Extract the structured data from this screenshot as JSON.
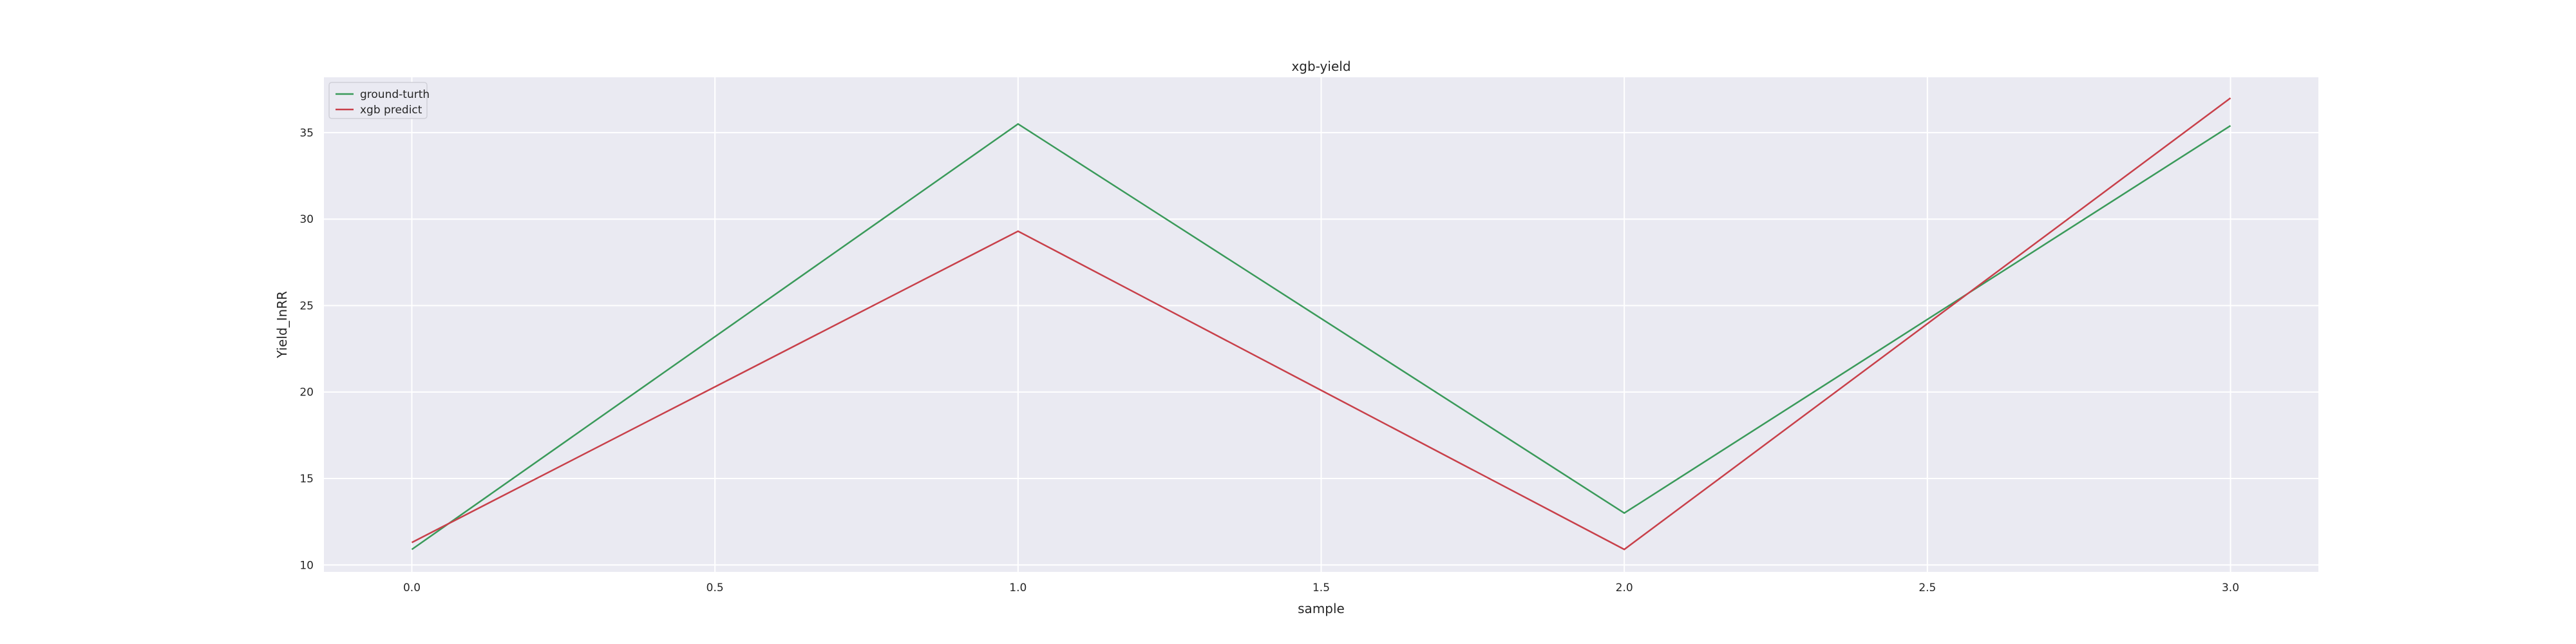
{
  "chart_data": {
    "type": "line",
    "title": "xgb-yield",
    "xlabel": "sample",
    "ylabel": "Yield_InRR",
    "x": [
      0,
      1,
      2,
      3
    ],
    "series": [
      {
        "name": "ground-turth",
        "color": "#3a9a5a",
        "values": [
          10.9,
          35.5,
          13.0,
          35.4
        ]
      },
      {
        "name": "xgb predict",
        "color": "#c8404a",
        "values": [
          11.3,
          29.3,
          10.9,
          37.0
        ]
      }
    ],
    "xlim": [
      -0.145,
      3.145
    ],
    "ylim": [
      9.6,
      38.2
    ],
    "xticks": [
      0.0,
      0.5,
      1.0,
      1.5,
      2.0,
      2.5,
      3.0
    ],
    "xtick_labels": [
      "0.0",
      "0.5",
      "1.0",
      "1.5",
      "2.0",
      "2.5",
      "3.0"
    ],
    "yticks": [
      10,
      15,
      20,
      25,
      30,
      35
    ],
    "ytick_labels": [
      "10",
      "15",
      "20",
      "25",
      "30",
      "35"
    ],
    "grid": true,
    "legend_position": "top-left",
    "colors": {
      "plot_background": "#eaeaf2",
      "grid": "#ffffff",
      "text": "#262626",
      "page_background": "#ffffff"
    }
  }
}
